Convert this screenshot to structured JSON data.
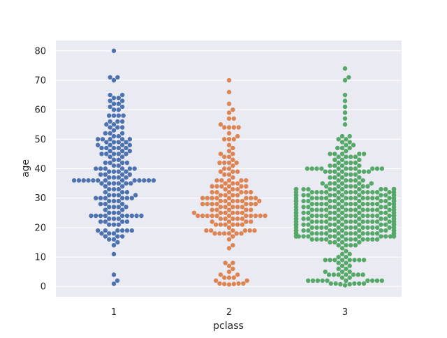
{
  "chart_data": {
    "type": "scatter",
    "subtype": "swarm",
    "title": "",
    "xlabel": "pclass",
    "ylabel": "age",
    "categories": [
      "1",
      "2",
      "3"
    ],
    "ylim": [
      -3.5,
      83.5
    ],
    "yticks": [
      "0",
      "10",
      "20",
      "30",
      "40",
      "50",
      "60",
      "70",
      "80"
    ],
    "grid": true,
    "legend": "none",
    "colors": {
      "background": "#eaeaf2",
      "grid": "#ffffff",
      "text": "#262626"
    },
    "series": [
      {
        "category": "1",
        "color": "#4c72b0",
        "values": [
          0.92,
          2,
          4,
          11,
          14,
          15,
          16,
          16,
          17,
          17,
          17,
          18,
          18,
          18,
          19,
          19,
          19,
          19,
          19,
          19,
          21,
          21,
          21,
          22,
          22,
          22,
          22,
          23,
          23,
          23,
          24,
          24,
          24,
          24,
          24,
          24,
          24,
          24,
          24,
          25,
          25,
          25,
          26,
          26,
          27,
          27,
          27,
          27,
          28,
          28,
          28,
          29,
          29,
          29,
          30,
          30,
          30,
          30,
          30,
          30,
          31,
          31,
          31,
          31,
          32,
          32,
          32,
          33,
          33,
          33,
          34,
          34,
          35,
          35,
          35,
          35,
          35,
          35,
          36,
          36,
          36,
          36,
          36,
          36,
          36,
          36,
          36,
          36,
          36,
          36,
          36,
          37,
          37,
          37,
          37,
          38,
          38,
          38,
          38,
          39,
          39,
          39,
          39,
          40,
          40,
          40,
          40,
          40,
          40,
          41,
          41,
          42,
          42,
          42,
          42,
          43,
          43,
          44,
          44,
          45,
          45,
          45,
          45,
          45,
          46,
          46,
          46,
          47,
          47,
          47,
          47,
          47,
          48,
          48,
          48,
          48,
          49,
          49,
          49,
          49,
          50,
          50,
          50,
          50,
          50,
          51,
          51,
          52,
          52,
          52,
          53,
          54,
          54,
          54,
          55,
          55,
          56,
          56,
          56,
          58,
          58,
          58,
          58,
          60,
          60,
          61,
          61,
          62,
          62,
          63,
          63,
          64,
          64,
          65,
          65,
          70,
          71,
          71,
          80
        ]
      },
      {
        "category": "2",
        "color": "#dd8452",
        "values": [
          0.67,
          0.83,
          0.83,
          1,
          1,
          1,
          2,
          2,
          3,
          3,
          3,
          4,
          4,
          5,
          6,
          7,
          8,
          8,
          13,
          14,
          16,
          17,
          18,
          18,
          18,
          18,
          18,
          18,
          19,
          19,
          19,
          19,
          19,
          19,
          20,
          21,
          21,
          21,
          21,
          21,
          21,
          22,
          22,
          22,
          22,
          23,
          23,
          23,
          23,
          23,
          24,
          24,
          24,
          24,
          24,
          24,
          24,
          24,
          24,
          24,
          24,
          25,
          25,
          25,
          25,
          25,
          25,
          26,
          26,
          26,
          26,
          26,
          27,
          27,
          27,
          27,
          27,
          28,
          28,
          28,
          28,
          28,
          28,
          28,
          28,
          29,
          29,
          29,
          29,
          29,
          29,
          30,
          30,
          30,
          30,
          30,
          30,
          30,
          30,
          31,
          31,
          31,
          31,
          32,
          32,
          32,
          32,
          32,
          32,
          33,
          33,
          33,
          34,
          34,
          34,
          34,
          34,
          34,
          35,
          35,
          35,
          36,
          36,
          36,
          36,
          36,
          37,
          38,
          38,
          39,
          39,
          39,
          40,
          40,
          41,
          42,
          42,
          42,
          42,
          43,
          44,
          44,
          45,
          45,
          46,
          47,
          48,
          50,
          50,
          50,
          51,
          52,
          54,
          54,
          54,
          54,
          55,
          57,
          57,
          59,
          60,
          62,
          66,
          70
        ]
      },
      {
        "category": "3",
        "color": "#55a868",
        "values": [
          0.42,
          0.75,
          0.75,
          1,
          1,
          1,
          1,
          1,
          2,
          2,
          2,
          2,
          2,
          2,
          2,
          2,
          2,
          2,
          3,
          3,
          4,
          4,
          4,
          4,
          4,
          4,
          4,
          5,
          5,
          5,
          6,
          6,
          7,
          7,
          8,
          8,
          9,
          9,
          9,
          9,
          9,
          9,
          9,
          9,
          10,
          10,
          11,
          11,
          12,
          13,
          14,
          14,
          14,
          14,
          15,
          15,
          15,
          15,
          16,
          16,
          16,
          16,
          16,
          16,
          16,
          16,
          16,
          16,
          16,
          16,
          17,
          17,
          17,
          17,
          17,
          17,
          17,
          17,
          17,
          17,
          17,
          17,
          17,
          17,
          18,
          18,
          18,
          18,
          18,
          18,
          18,
          18,
          18,
          18,
          18,
          18,
          18,
          18,
          18,
          18,
          18,
          18,
          18,
          18,
          19,
          19,
          19,
          19,
          19,
          19,
          19,
          19,
          19,
          19,
          19,
          19,
          19,
          19,
          19,
          19,
          19,
          19,
          20,
          20,
          20,
          20,
          20,
          20,
          20,
          20,
          20,
          20,
          20,
          20,
          20,
          20,
          20,
          20,
          20,
          20,
          20,
          20,
          21,
          21,
          21,
          21,
          21,
          21,
          21,
          21,
          21,
          21,
          21,
          21,
          21,
          21,
          21,
          21,
          21,
          21,
          21,
          21,
          22,
          22,
          22,
          22,
          22,
          22,
          22,
          22,
          22,
          22,
          22,
          22,
          22,
          22,
          22,
          22,
          22,
          22,
          22,
          22,
          22,
          22,
          23,
          23,
          23,
          23,
          23,
          23,
          23,
          23,
          23,
          23,
          23,
          23,
          23,
          23,
          23,
          23,
          23,
          23,
          24,
          24,
          24,
          24,
          24,
          24,
          24,
          24,
          24,
          24,
          24,
          24,
          24,
          24,
          24,
          24,
          24,
          24,
          24,
          24,
          25,
          25,
          25,
          25,
          25,
          25,
          25,
          25,
          25,
          25,
          25,
          25,
          25,
          25,
          25,
          25,
          26,
          26,
          26,
          26,
          26,
          26,
          26,
          26,
          26,
          26,
          26,
          26,
          26,
          26,
          26,
          26,
          26,
          26,
          27,
          27,
          27,
          27,
          27,
          27,
          27,
          27,
          27,
          27,
          27,
          27,
          28,
          28,
          28,
          28,
          28,
          28,
          28,
          28,
          28,
          28,
          28,
          28,
          28,
          28,
          28,
          29,
          29,
          29,
          29,
          29,
          29,
          29,
          29,
          29,
          29,
          29,
          29,
          29,
          29,
          29,
          29,
          29,
          29,
          30,
          30,
          30,
          30,
          30,
          30,
          30,
          30,
          30,
          30,
          30,
          30,
          30,
          30,
          30,
          30,
          30,
          31,
          31,
          31,
          31,
          31,
          31,
          31,
          31,
          31,
          31,
          31,
          31,
          31,
          31,
          32,
          32,
          32,
          32,
          32,
          32,
          32,
          32,
          32,
          32,
          32,
          32,
          32,
          32,
          32,
          32,
          33,
          33,
          33,
          33,
          33,
          33,
          33,
          33,
          33,
          33,
          33,
          33,
          33,
          33,
          33,
          33,
          34,
          34,
          34,
          34,
          34,
          34,
          34,
          35,
          35,
          35,
          35,
          35,
          35,
          36,
          36,
          36,
          36,
          36,
          37,
          37,
          37,
          37,
          38,
          38,
          38,
          38,
          39,
          39,
          39,
          39,
          39,
          39,
          39,
          40,
          40,
          40,
          40,
          40,
          40,
          40,
          40,
          40,
          40,
          40,
          41,
          41,
          41,
          41,
          42,
          42,
          42,
          42,
          43,
          43,
          43,
          44,
          44,
          44,
          44,
          45,
          45,
          45,
          45,
          45,
          46,
          47,
          47,
          47,
          48,
          48,
          49,
          49,
          50,
          50,
          51,
          51,
          55,
          57,
          59,
          61,
          63,
          65,
          70,
          71,
          74
        ]
      }
    ]
  }
}
